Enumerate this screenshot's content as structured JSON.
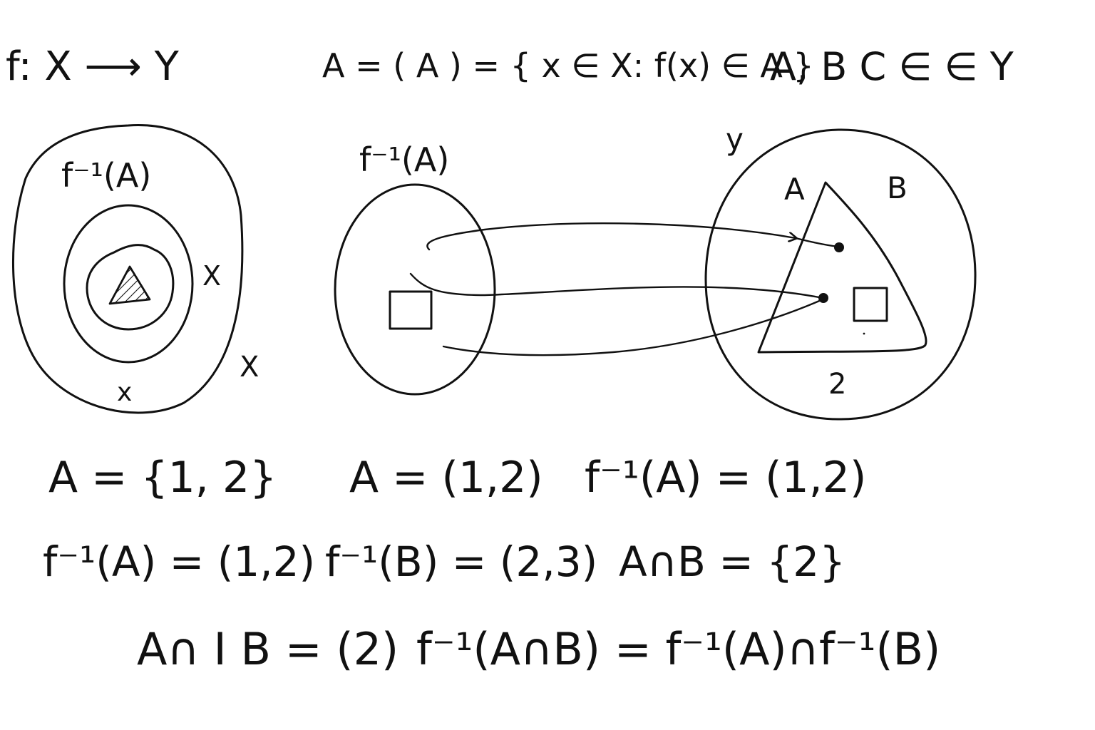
{
  "header": {
    "mapping": "f: X ⟶ Y",
    "preimage_definition": "A = ( A ) = { x ∈ X: f(x) ∈ A }",
    "membership": "A, B C ∈ ∈ Y"
  },
  "left_diagram": {
    "preimage_label": "f⁻¹(A)",
    "inner_x_label": "X",
    "bottom_x_label": "x",
    "outer_x_label": "X"
  },
  "middle_diagram": {
    "preimage_label": "f⁻¹(A)"
  },
  "right_diagram": {
    "y_label": "y",
    "a_label": "A",
    "b_label": "B",
    "two_label": "2"
  },
  "equations": {
    "row1": [
      "A = {1, 2}",
      "A = (1,2)",
      "f⁻¹(A) = (1,2)"
    ],
    "row2": [
      "f⁻¹(A) = (1,2)",
      "f⁻¹(B) = (2,3)",
      "A∩B = {2}"
    ],
    "row3": [
      "A∩ I B = (2)",
      "f⁻¹(A∩B) = f⁻¹(A)∩f⁻¹(B)"
    ]
  },
  "colors": {
    "ink": "#111111",
    "paper": "#ffffff"
  }
}
